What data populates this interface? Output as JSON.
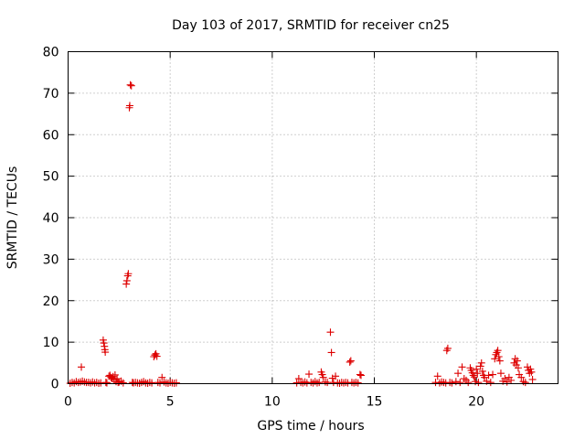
{
  "chart_data": {
    "type": "scatter",
    "title": "Day 103 of 2017, SRMTID for receiver cn25",
    "xlabel": "GPS time / hours",
    "ylabel": "SRMTID / TECUs",
    "xlim": [
      0,
      24
    ],
    "ylim": [
      0,
      80
    ],
    "x_ticks": [
      0,
      5,
      10,
      15,
      20
    ],
    "y_ticks": [
      0,
      10,
      20,
      30,
      40,
      50,
      60,
      70,
      80
    ],
    "x_tick_labels": [
      "0",
      "5",
      "10",
      "15",
      "20"
    ],
    "y_tick_labels": [
      "0",
      "10",
      "20",
      "30",
      "40",
      "50",
      "60",
      "70",
      "80"
    ],
    "grid": true,
    "marker": "+",
    "marker_color": "#dd0000",
    "series": [
      {
        "name": "cn25",
        "points": [
          [
            0.1,
            0.1
          ],
          [
            0.2,
            0.3
          ],
          [
            0.3,
            0.2
          ],
          [
            0.4,
            0.5
          ],
          [
            0.5,
            0.3
          ],
          [
            0.6,
            0.4
          ],
          [
            0.65,
            4.0
          ],
          [
            0.7,
            0.6
          ],
          [
            0.8,
            0.4
          ],
          [
            0.9,
            0.3
          ],
          [
            1.0,
            0.3
          ],
          [
            1.1,
            0.2
          ],
          [
            1.2,
            0.4
          ],
          [
            1.3,
            0.2
          ],
          [
            1.4,
            0.3
          ],
          [
            1.5,
            0.1
          ],
          [
            1.6,
            0.2
          ],
          [
            1.72,
            10.5
          ],
          [
            1.75,
            9.8
          ],
          [
            1.78,
            9.0
          ],
          [
            1.8,
            8.2
          ],
          [
            1.82,
            7.6
          ],
          [
            1.85,
            0.3
          ],
          [
            1.9,
            0.2
          ],
          [
            2.0,
            1.8
          ],
          [
            2.05,
            2.0
          ],
          [
            2.1,
            1.5
          ],
          [
            2.15,
            1.2
          ],
          [
            2.2,
            1.7
          ],
          [
            2.25,
            1.0
          ],
          [
            2.3,
            2.1
          ],
          [
            2.35,
            0.5
          ],
          [
            2.4,
            1.2
          ],
          [
            2.45,
            0.3
          ],
          [
            2.5,
            0.4
          ],
          [
            2.6,
            0.6
          ],
          [
            2.7,
            0.2
          ],
          [
            2.85,
            24.0
          ],
          [
            2.88,
            24.8
          ],
          [
            2.92,
            26.0
          ],
          [
            2.95,
            26.5
          ],
          [
            3.0,
            66.5
          ],
          [
            3.02,
            67.0
          ],
          [
            3.05,
            72.0
          ],
          [
            3.1,
            71.8
          ],
          [
            3.15,
            0.3
          ],
          [
            3.2,
            0.2
          ],
          [
            3.3,
            0.3
          ],
          [
            3.4,
            0.2
          ],
          [
            3.5,
            0.1
          ],
          [
            3.6,
            0.3
          ],
          [
            3.7,
            0.5
          ],
          [
            3.8,
            0.2
          ],
          [
            3.9,
            0.1
          ],
          [
            4.0,
            0.3
          ],
          [
            4.1,
            0.2
          ],
          [
            4.2,
            6.5
          ],
          [
            4.25,
            6.9
          ],
          [
            4.3,
            7.2
          ],
          [
            4.35,
            6.6
          ],
          [
            4.4,
            0.3
          ],
          [
            4.5,
            0.2
          ],
          [
            4.6,
            1.5
          ],
          [
            4.7,
            0.4
          ],
          [
            4.8,
            0.2
          ],
          [
            4.9,
            0.1
          ],
          [
            5.0,
            0.3
          ],
          [
            5.1,
            0.2
          ],
          [
            5.2,
            0.1
          ],
          [
            5.3,
            0.2
          ],
          [
            11.2,
            0.2
          ],
          [
            11.3,
            1.2
          ],
          [
            11.4,
            0.3
          ],
          [
            11.5,
            0.2
          ],
          [
            11.6,
            0.4
          ],
          [
            11.7,
            0.2
          ],
          [
            11.8,
            2.3
          ],
          [
            11.9,
            0.3
          ],
          [
            12.0,
            0.2
          ],
          [
            12.1,
            0.5
          ],
          [
            12.2,
            0.2
          ],
          [
            12.3,
            0.3
          ],
          [
            12.4,
            2.8
          ],
          [
            12.45,
            2.2
          ],
          [
            12.5,
            1.5
          ],
          [
            12.6,
            0.4
          ],
          [
            12.7,
            0.3
          ],
          [
            12.85,
            12.4
          ],
          [
            12.9,
            7.5
          ],
          [
            12.95,
            1.3
          ],
          [
            13.0,
            0.3
          ],
          [
            13.1,
            1.8
          ],
          [
            13.2,
            0.2
          ],
          [
            13.3,
            0.1
          ],
          [
            13.4,
            0.3
          ],
          [
            13.5,
            0.2
          ],
          [
            13.6,
            0.3
          ],
          [
            13.7,
            0.2
          ],
          [
            13.8,
            5.2
          ],
          [
            13.85,
            5.5
          ],
          [
            13.9,
            0.3
          ],
          [
            14.0,
            0.2
          ],
          [
            14.1,
            0.3
          ],
          [
            14.2,
            0.2
          ],
          [
            14.3,
            2.2
          ],
          [
            14.35,
            2.0
          ],
          [
            18.0,
            0.3
          ],
          [
            18.1,
            1.8
          ],
          [
            18.2,
            0.2
          ],
          [
            18.3,
            0.4
          ],
          [
            18.4,
            0.3
          ],
          [
            18.5,
            0.2
          ],
          [
            18.55,
            8.0
          ],
          [
            18.6,
            8.5
          ],
          [
            18.7,
            0.3
          ],
          [
            18.8,
            0.2
          ],
          [
            19.0,
            0.5
          ],
          [
            19.1,
            2.5
          ],
          [
            19.2,
            0.3
          ],
          [
            19.3,
            4.0
          ],
          [
            19.4,
            1.2
          ],
          [
            19.5,
            0.8
          ],
          [
            19.6,
            0.3
          ],
          [
            19.7,
            3.8
          ],
          [
            19.75,
            3.2
          ],
          [
            19.8,
            2.6
          ],
          [
            19.85,
            2.0
          ],
          [
            19.9,
            1.6
          ],
          [
            19.95,
            0.5
          ],
          [
            20.0,
            3.5
          ],
          [
            20.05,
            2.5
          ],
          [
            20.1,
            0.3
          ],
          [
            20.2,
            4.2
          ],
          [
            20.25,
            5.0
          ],
          [
            20.3,
            3.0
          ],
          [
            20.35,
            2.0
          ],
          [
            20.4,
            1.5
          ],
          [
            20.5,
            0.6
          ],
          [
            20.6,
            2.0
          ],
          [
            20.7,
            0.3
          ],
          [
            20.8,
            2.2
          ],
          [
            20.9,
            6.0
          ],
          [
            20.95,
            7.0
          ],
          [
            21.0,
            7.5
          ],
          [
            21.05,
            8.0
          ],
          [
            21.1,
            6.5
          ],
          [
            21.15,
            5.5
          ],
          [
            21.2,
            2.5
          ],
          [
            21.3,
            0.6
          ],
          [
            21.4,
            1.2
          ],
          [
            21.5,
            0.4
          ],
          [
            21.6,
            1.5
          ],
          [
            21.7,
            0.8
          ],
          [
            21.85,
            5.0
          ],
          [
            21.9,
            6.0
          ],
          [
            21.95,
            4.5
          ],
          [
            22.0,
            5.5
          ],
          [
            22.05,
            3.8
          ],
          [
            22.1,
            2.2
          ],
          [
            22.2,
            1.5
          ],
          [
            22.3,
            0.5
          ],
          [
            22.4,
            0.3
          ],
          [
            22.5,
            4.0
          ],
          [
            22.55,
            3.2
          ],
          [
            22.6,
            2.5
          ],
          [
            22.65,
            3.5
          ],
          [
            22.7,
            2.8
          ],
          [
            22.75,
            1.0
          ]
        ]
      }
    ]
  }
}
